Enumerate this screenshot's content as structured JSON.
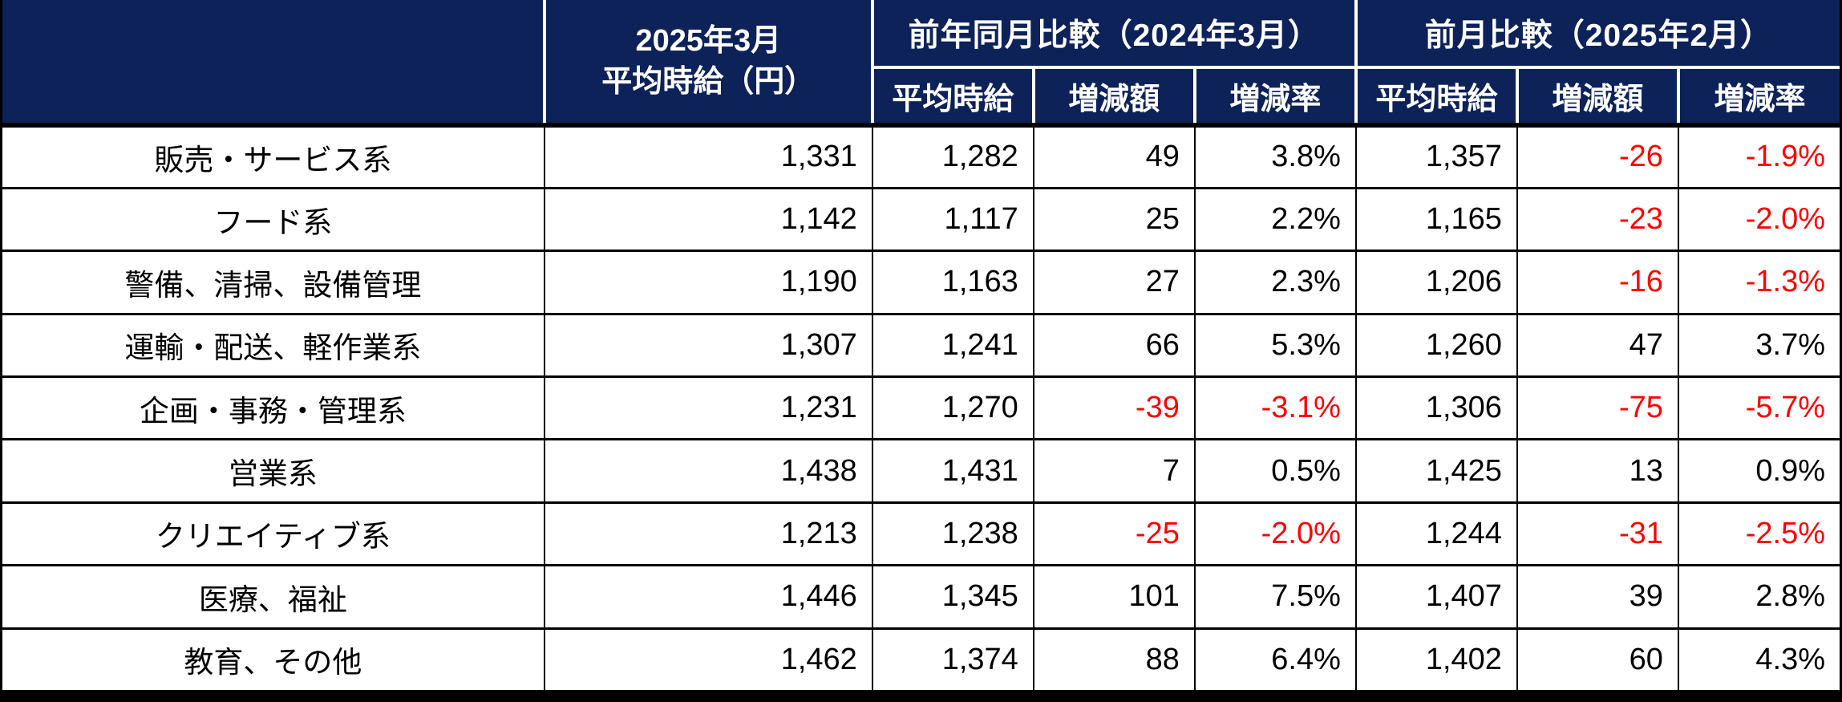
{
  "colors": {
    "header_bg": "#0d2259",
    "header_text": "#ffffff",
    "negative": "#ff0000",
    "body_text": "#000000"
  },
  "chart_data": {
    "type": "table",
    "corner_label": "",
    "current_month_header": {
      "line1": "2025年3月",
      "line2": "平均時給（円）"
    },
    "group_headers": {
      "yoy": "前年同月比較（2024年3月）",
      "mom": "前月比較（2025年2月）"
    },
    "subheaders": {
      "yoy_avg": "平均時給",
      "yoy_diff": "増減額",
      "yoy_rate": "増減率",
      "mom_avg": "平均時給",
      "mom_diff": "増減額",
      "mom_rate": "増減率"
    },
    "rows": [
      {
        "category": "販売・サービス系",
        "values": [
          "1,331",
          "1,282",
          "49",
          "3.8%",
          "1,357",
          "-26",
          "-1.9%"
        ]
      },
      {
        "category": "フード系",
        "values": [
          "1,142",
          "1,117",
          "25",
          "2.2%",
          "1,165",
          "-23",
          "-2.0%"
        ]
      },
      {
        "category": "警備、清掃、設備管理",
        "values": [
          "1,190",
          "1,163",
          "27",
          "2.3%",
          "1,206",
          "-16",
          "-1.3%"
        ]
      },
      {
        "category": "運輸・配送、軽作業系",
        "values": [
          "1,307",
          "1,241",
          "66",
          "5.3%",
          "1,260",
          "47",
          "3.7%"
        ]
      },
      {
        "category": "企画・事務・管理系",
        "values": [
          "1,231",
          "1,270",
          "-39",
          "-3.1%",
          "1,306",
          "-75",
          "-5.7%"
        ]
      },
      {
        "category": "営業系",
        "values": [
          "1,438",
          "1,431",
          "7",
          "0.5%",
          "1,425",
          "13",
          "0.9%"
        ]
      },
      {
        "category": "クリエイティブ系",
        "values": [
          "1,213",
          "1,238",
          "-25",
          "-2.0%",
          "1,244",
          "-31",
          "-2.5%"
        ]
      },
      {
        "category": "医療、福祉",
        "values": [
          "1,446",
          "1,345",
          "101",
          "7.5%",
          "1,407",
          "39",
          "2.8%"
        ]
      },
      {
        "category": "教育、その他",
        "values": [
          "1,462",
          "1,374",
          "88",
          "6.4%",
          "1,402",
          "60",
          "4.3%"
        ]
      }
    ]
  }
}
